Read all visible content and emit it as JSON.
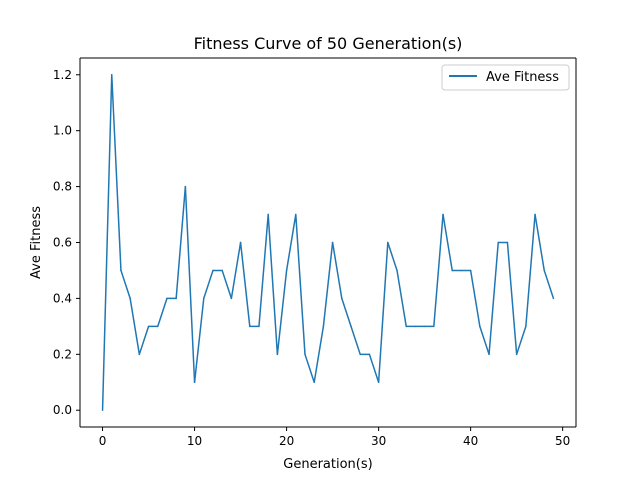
{
  "chart_data": {
    "type": "line",
    "title": "Fitness Curve of 50 Generation(s)",
    "xlabel": "Generation(s)",
    "ylabel": "Ave Fitness",
    "xlim": [
      -2.45,
      51.45
    ],
    "ylim": [
      -0.06,
      1.26
    ],
    "xticks": [
      0,
      10,
      20,
      30,
      40,
      50
    ],
    "yticks": [
      0.0,
      0.2,
      0.4,
      0.6,
      0.8,
      1.0,
      1.2
    ],
    "xtick_labels": [
      "0",
      "10",
      "20",
      "30",
      "40",
      "50"
    ],
    "ytick_labels": [
      "0.0",
      "0.2",
      "0.4",
      "0.6",
      "0.8",
      "1.0",
      "1.2"
    ],
    "grid": false,
    "legend_position": "top-right",
    "series": [
      {
        "name": "Ave Fitness",
        "color": "#1f77b4",
        "x": [
          0,
          1,
          2,
          3,
          4,
          5,
          6,
          7,
          8,
          9,
          10,
          11,
          12,
          13,
          14,
          15,
          16,
          17,
          18,
          19,
          20,
          21,
          22,
          23,
          24,
          25,
          26,
          27,
          28,
          29,
          30,
          31,
          32,
          33,
          34,
          35,
          36,
          37,
          38,
          39,
          40,
          41,
          42,
          43,
          44,
          45,
          46,
          47,
          48,
          49
        ],
        "y": [
          0.0,
          1.2,
          0.5,
          0.4,
          0.2,
          0.3,
          0.3,
          0.4,
          0.4,
          0.8,
          0.1,
          0.4,
          0.5,
          0.5,
          0.4,
          0.6,
          0.3,
          0.3,
          0.7,
          0.2,
          0.5,
          0.7,
          0.2,
          0.1,
          0.3,
          0.6,
          0.4,
          0.3,
          0.2,
          0.2,
          0.1,
          0.6,
          0.5,
          0.3,
          0.3,
          0.3,
          0.3,
          0.7,
          0.5,
          0.5,
          0.5,
          0.3,
          0.2,
          0.6,
          0.6,
          0.2,
          0.3,
          0.7,
          0.5,
          0.4
        ]
      }
    ]
  }
}
